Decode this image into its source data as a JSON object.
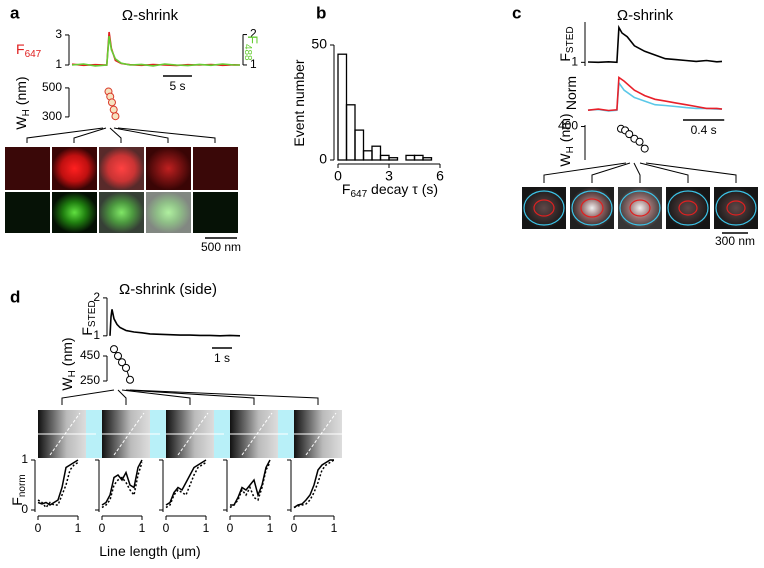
{
  "chart_data": [
    {
      "type": "line",
      "panel": "a",
      "title": "Ω-shrink",
      "x": [
        0,
        2,
        4,
        6,
        6.4,
        6.8,
        7.5,
        8.5,
        10,
        12,
        14,
        16,
        18,
        20,
        22,
        24,
        26,
        28,
        29
      ],
      "xlim": [
        0,
        29
      ],
      "ylim": [
        0.8,
        3.33
      ],
      "yticks": [
        1,
        3
      ],
      "y2lim": [
        0.9,
        2.15
      ],
      "y2ticks": [
        1,
        2
      ],
      "ylabel": [
        "F",
        "647"
      ],
      "y2label": [
        "F",
        "488"
      ],
      "series": [
        {
          "color": "#e02020",
          "values": [
            1.05,
            0.98,
            1.02,
            1,
            3.2,
            2.1,
            1.3,
            1.1,
            1.02,
            0.98,
            1.03,
            1,
            0.97,
            1.02,
            1,
            1.03,
            0.98,
            1.01,
            1
          ]
        },
        {
          "color": "#66cc33",
          "axis": "y2",
          "values": [
            1,
            1.03,
            0.97,
            1,
            1.95,
            1.5,
            1.2,
            1.06,
            1,
            1.02,
            0.97,
            1.03,
            1,
            0.98,
            1.02,
            0.99,
            1.03,
            1,
            1
          ]
        }
      ],
      "scale_bar": {
        "value": 5,
        "label": "5 s"
      }
    },
    {
      "type": "scatter",
      "x": [
        6.3,
        6.6,
        6.9,
        7.2,
        7.5
      ],
      "xlim": [
        0,
        29
      ],
      "ylim": [
        265,
        520
      ],
      "yticks": [
        300,
        500
      ],
      "ylabel": [
        "W",
        "H",
        " (nm)"
      ],
      "color": "#d93a2a",
      "fill": "#f6e3c0",
      "line_color": "#e0a020",
      "values": [
        475,
        440,
        400,
        350,
        305
      ],
      "image_scale_bar": "500 nm"
    },
    {
      "type": "histogram",
      "panel": "b",
      "bins": [
        0,
        0.5,
        1,
        1.5,
        2,
        2.5,
        3,
        3.5,
        4,
        4.5,
        5,
        5.5
      ],
      "values": [
        46,
        24,
        13,
        4,
        6,
        2,
        1,
        0,
        2,
        2,
        1
      ],
      "xlim": [
        0,
        6
      ],
      "xticks": [
        0,
        3,
        6
      ],
      "ylim": [
        0,
        50
      ],
      "yticks": [
        0,
        50
      ],
      "xlabel": [
        "F",
        "647",
        " decay τ (s)"
      ],
      "ylabel": [
        "Event number"
      ]
    },
    {
      "type": "line",
      "panel": "c",
      "title": "Ω-shrink",
      "x": [
        0,
        0.1,
        0.2,
        0.28,
        0.3,
        0.33,
        0.38,
        0.45,
        0.55,
        0.65,
        0.75,
        0.85,
        0.95,
        1.05,
        1.15,
        1.25,
        1.3
      ],
      "xlim": [
        0,
        1.3
      ],
      "ylim": [
        0.8,
        3.2
      ],
      "yticks": [
        1
      ],
      "ylabel": [
        "F",
        "STED"
      ],
      "series": [
        {
          "color": "#000000",
          "values": [
            1.02,
            1,
            1.03,
            1,
            2.9,
            2.6,
            2.4,
            1.9,
            1.6,
            1.4,
            1.2,
            1.15,
            1.1,
            1.05,
            1.1,
            1.03,
            1.05
          ]
        }
      ]
    },
    {
      "type": "line",
      "x": [
        0,
        0.1,
        0.2,
        0.28,
        0.3,
        0.35,
        0.45,
        0.55,
        0.65,
        0.75,
        0.85,
        0.95,
        1.05,
        1.15,
        1.25,
        1.3
      ],
      "xlim": [
        0,
        1.3
      ],
      "ylim": [
        0,
        1.1
      ],
      "ylabel": [
        "Norm"
      ],
      "series": [
        {
          "color": "#5bc8e8",
          "values": [
            0.05,
            0.07,
            0.03,
            0.05,
            0.8,
            0.6,
            0.4,
            0.3,
            0.2,
            0.18,
            0.15,
            0.12,
            0.1,
            0.1,
            0.08,
            0.08
          ]
        },
        {
          "color": "#e8202a",
          "values": [
            0.05,
            0.08,
            0.04,
            0.06,
            0.95,
            0.85,
            0.6,
            0.45,
            0.35,
            0.3,
            0.25,
            0.2,
            0.15,
            0.1,
            0.1,
            0.08
          ]
        }
      ],
      "scale_bar": {
        "value": 0.4,
        "label": "0.4 s"
      }
    },
    {
      "type": "scatter",
      "x": [
        0.32,
        0.36,
        0.4,
        0.45,
        0.5,
        0.55
      ],
      "xlim": [
        0,
        1.3
      ],
      "ylim": [
        180,
        410
      ],
      "yticks": [
        400
      ],
      "ylabel": [
        "W",
        "H",
        " (nm)"
      ],
      "color": "#000000",
      "fill": "#ffffff",
      "line_color": "#000000",
      "values": [
        385,
        375,
        350,
        320,
        300,
        255
      ],
      "image_scale_bar": "300 nm"
    },
    {
      "type": "line",
      "panel": "d",
      "title": "Ω-shrink (side)",
      "x": [
        0,
        0.05,
        0.1,
        0.2,
        0.35,
        0.5,
        0.8,
        1.2,
        1.6,
        2,
        2.5,
        3,
        3.5,
        4,
        4.5,
        5,
        5.5,
        6,
        6.5
      ],
      "xlim": [
        0,
        6.5
      ],
      "ylim": [
        0.89,
        2.05
      ],
      "yticks": [
        1,
        2
      ],
      "ylabel": [
        "F",
        "STED"
      ],
      "series": [
        {
          "color": "#000000",
          "values": [
            1,
            1.5,
            1.7,
            1.45,
            1.3,
            1.22,
            1.14,
            1.1,
            1.08,
            1.05,
            1.04,
            1.03,
            1.02,
            1.02,
            1.01,
            1.01,
            1,
            1.01,
            1
          ]
        }
      ],
      "scale_bar": {
        "value": 1,
        "label": "1 s"
      }
    },
    {
      "type": "scatter",
      "x": [
        0.2,
        0.4,
        0.6,
        0.8,
        1.0
      ],
      "xlim": [
        0,
        6.5
      ],
      "ylim": [
        210,
        530
      ],
      "yticks": [
        250,
        450
      ],
      "ylabel": [
        "W",
        "H",
        " (nm)"
      ],
      "color": "#000000",
      "fill": "#ffffff",
      "line_color": "#000000",
      "values": [
        505,
        450,
        400,
        355,
        260
      ]
    },
    {
      "type": "line_multiples",
      "x": [
        0,
        0.1,
        0.2,
        0.3,
        0.4,
        0.5,
        0.6,
        0.7,
        0.8,
        0.9,
        1
      ],
      "xlim": [
        0,
        1
      ],
      "xticks": [
        0,
        1
      ],
      "ylim": [
        0,
        1
      ],
      "yticks": [
        0,
        1
      ],
      "ylabel": [
        "F",
        "norm"
      ],
      "xlabel": [
        "Line length (μm)"
      ],
      "panels": [
        {
          "series": [
            {
              "color": "#000000",
              "linestyle": "solid",
              "values": [
                0.15,
                0.12,
                0.15,
                0.1,
                0.15,
                0.2,
                0.45,
                0.85,
                0.9,
                0.95,
                1
              ]
            },
            {
              "color": "#000000",
              "linestyle": "dotted",
              "values": [
                0.2,
                0.15,
                0.05,
                0.15,
                0.1,
                0.1,
                0.3,
                0.5,
                0.8,
                0.9,
                0.95
              ]
            }
          ]
        },
        {
          "series": [
            {
              "color": "#000000",
              "linestyle": "solid",
              "values": [
                0.1,
                0.15,
                0.3,
                0.65,
                0.7,
                0.6,
                0.75,
                0.5,
                0.45,
                0.85,
                1
              ]
            },
            {
              "color": "#000000",
              "linestyle": "dotted",
              "values": [
                0.05,
                0.1,
                0.2,
                0.5,
                0.6,
                0.65,
                0.55,
                0.4,
                0.3,
                0.7,
                0.95
              ]
            }
          ]
        },
        {
          "series": [
            {
              "color": "#000000",
              "linestyle": "solid",
              "values": [
                0.1,
                0.15,
                0.35,
                0.45,
                0.4,
                0.55,
                0.7,
                0.85,
                0.9,
                0.95,
                1
              ]
            },
            {
              "color": "#000000",
              "linestyle": "dotted",
              "values": [
                0.05,
                0.1,
                0.3,
                0.4,
                0.35,
                0.3,
                0.5,
                0.7,
                0.85,
                0.9,
                0.95
              ]
            }
          ]
        },
        {
          "series": [
            {
              "color": "#000000",
              "linestyle": "solid",
              "values": [
                0.1,
                0.1,
                0.25,
                0.45,
                0.4,
                0.5,
                0.6,
                0.3,
                0.5,
                0.85,
                1
              ]
            },
            {
              "color": "#000000",
              "linestyle": "dotted",
              "values": [
                0.05,
                0.1,
                0.2,
                0.4,
                0.3,
                0.45,
                0.25,
                0.2,
                0.45,
                0.8,
                0.95
              ]
            }
          ]
        },
        {
          "series": [
            {
              "color": "#000000",
              "linestyle": "solid",
              "values": [
                0.05,
                0.1,
                0.12,
                0.2,
                0.3,
                0.5,
                0.8,
                0.9,
                0.95,
                1,
                1
              ]
            },
            {
              "color": "#000000",
              "linestyle": "dotted",
              "values": [
                0.05,
                0.08,
                0.1,
                0.12,
                0.2,
                0.35,
                0.55,
                0.8,
                0.9,
                0.95,
                1
              ]
            }
          ]
        }
      ]
    }
  ]
}
